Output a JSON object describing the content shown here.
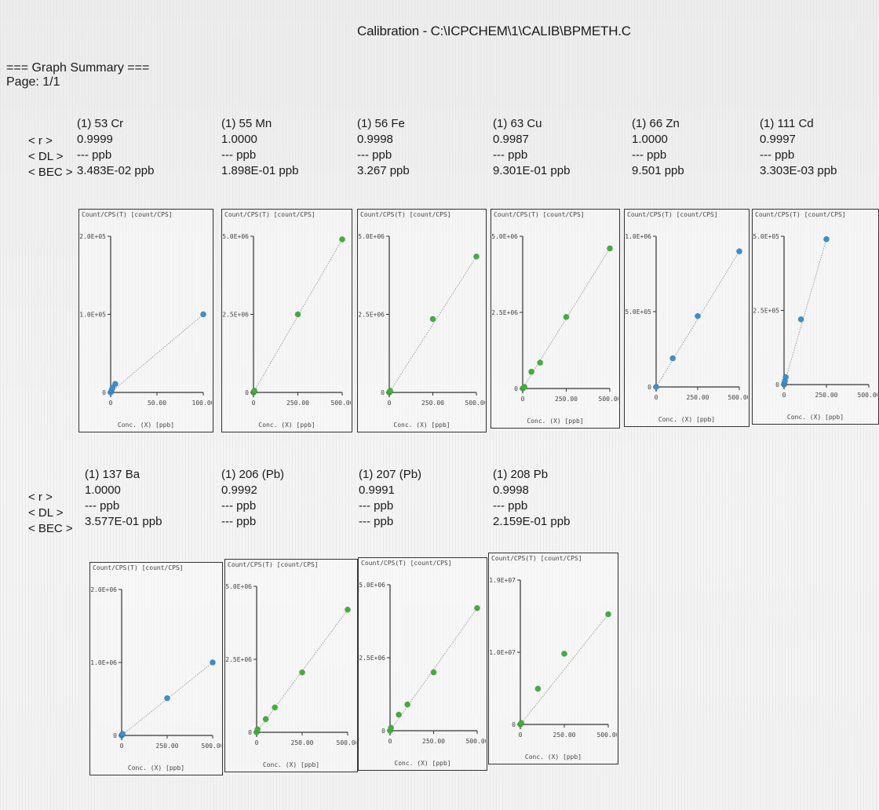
{
  "title": "Calibration - C:\\ICPCHEM\\1\\CALIB\\BPMETH.C",
  "summary": {
    "heading": "=== Graph Summary ===",
    "page": "Page: 1/1"
  },
  "row_labels": {
    "r": "< r >",
    "dl": "< DL >",
    "bec": "< BEC >"
  },
  "plot_header": "Count/CPS(T) [count/CPS]",
  "plot_xlabel": "Conc. (X) [ppb]",
  "colors": {
    "blue": "#3b8fcf",
    "green": "#41b03a"
  },
  "elements": [
    {
      "name": "(1) 53 Cr",
      "r": "0.9999",
      "dl": "--- ppb",
      "bec": "3.483E-02 ppb",
      "chart_data": {
        "type": "scatter",
        "x_ticks": [
          "0",
          "50.00",
          "100.00"
        ],
        "y_ticks": [
          "0",
          "1.0E+05",
          "2.0E+05"
        ],
        "xlim": [
          0,
          100
        ],
        "ylim": [
          0,
          200000
        ],
        "color": "blue",
        "points": [
          [
            0,
            0
          ],
          [
            1,
            3000
          ],
          [
            2,
            6000
          ],
          [
            5,
            11000
          ],
          [
            100,
            100000
          ]
        ]
      }
    },
    {
      "name": "(1) 55 Mn",
      "r": "1.0000",
      "dl": "--- ppb",
      "bec": "1.898E-01 ppb",
      "chart_data": {
        "type": "scatter",
        "x_ticks": [
          "0",
          "250.00",
          "500.00"
        ],
        "y_ticks": [
          "0",
          "2.5E+06",
          "5.0E+06"
        ],
        "xlim": [
          0,
          500
        ],
        "ylim": [
          0,
          5000000
        ],
        "color": "green",
        "points": [
          [
            0,
            0
          ],
          [
            2,
            20000
          ],
          [
            5,
            50000
          ],
          [
            250,
            2500000
          ],
          [
            500,
            4900000
          ]
        ]
      }
    },
    {
      "name": "(1) 56 Fe",
      "r": "0.9998",
      "dl": "--- ppb",
      "bec": "3.267 ppb",
      "chart_data": {
        "type": "scatter",
        "x_ticks": [
          "0",
          "250.00",
          "500.00"
        ],
        "y_ticks": [
          "0",
          "2.5E+06",
          "5.0E+06"
        ],
        "xlim": [
          0,
          500
        ],
        "ylim": [
          0,
          5000000
        ],
        "color": "green",
        "points": [
          [
            0,
            0
          ],
          [
            2,
            20000
          ],
          [
            5,
            50000
          ],
          [
            250,
            2350000
          ],
          [
            500,
            4350000
          ]
        ]
      }
    },
    {
      "name": "(1) 63 Cu",
      "r": "0.9987",
      "dl": "--- ppb",
      "bec": "9.301E-01 ppb",
      "chart_data": {
        "type": "scatter",
        "x_ticks": [
          "0",
          "250.00",
          "500.00"
        ],
        "y_ticks": [
          "0",
          "2.5E+06",
          "5.0E+06"
        ],
        "xlim": [
          0,
          500
        ],
        "ylim": [
          0,
          5000000
        ],
        "color": "green",
        "points": [
          [
            0,
            0
          ],
          [
            10,
            50000
          ],
          [
            50,
            550000
          ],
          [
            100,
            850000
          ],
          [
            250,
            2350000
          ],
          [
            500,
            4600000
          ]
        ]
      }
    },
    {
      "name": "(1) 66 Zn",
      "r": "1.0000",
      "dl": "--- ppb",
      "bec": "9.501 ppb",
      "chart_data": {
        "type": "scatter",
        "x_ticks": [
          "0",
          "250.00",
          "500.00"
        ],
        "y_ticks": [
          "0",
          "5.0E+05",
          "1.0E+06"
        ],
        "xlim": [
          0,
          500
        ],
        "ylim": [
          0,
          1000000
        ],
        "color": "blue",
        "points": [
          [
            0,
            0
          ],
          [
            100,
            190000
          ],
          [
            250,
            470000
          ],
          [
            500,
            900000
          ]
        ]
      }
    },
    {
      "name": "(1) 111 Cd",
      "r": "0.9997",
      "dl": "--- ppb",
      "bec": "3.303E-03 ppb",
      "chart_data": {
        "type": "scatter",
        "x_ticks": [
          "0",
          "250.00",
          "500.00"
        ],
        "y_ticks": [
          "0",
          "2.5E+05",
          "5.0E+05"
        ],
        "xlim": [
          0,
          500
        ],
        "ylim": [
          0,
          500000
        ],
        "color": "blue",
        "points": [
          [
            0,
            0
          ],
          [
            2,
            5000
          ],
          [
            5,
            12000
          ],
          [
            10,
            25000
          ],
          [
            100,
            220000
          ],
          [
            250,
            490000
          ]
        ]
      }
    },
    {
      "name": "(1) 137 Ba",
      "r": "1.0000",
      "dl": "--- ppb",
      "bec": "3.577E-01 ppb",
      "chart_data": {
        "type": "scatter",
        "x_ticks": [
          "0",
          "250.00",
          "500.00"
        ],
        "y_ticks": [
          "0",
          "1.0E+06",
          "2.0E+06"
        ],
        "xlim": [
          0,
          500
        ],
        "ylim": [
          0,
          2000000
        ],
        "color": "blue",
        "points": [
          [
            0,
            0
          ],
          [
            2,
            10000
          ],
          [
            5,
            20000
          ],
          [
            250,
            510000
          ],
          [
            500,
            1000000
          ]
        ]
      }
    },
    {
      "name": "(1) 206 (Pb)",
      "r": "0.9992",
      "dl": "--- ppb",
      "bec": "--- ppb",
      "chart_data": {
        "type": "scatter",
        "x_ticks": [
          "0",
          "250.00",
          "500.00"
        ],
        "y_ticks": [
          "0",
          "2.5E+06",
          "5.0E+06"
        ],
        "xlim": [
          0,
          500
        ],
        "ylim": [
          0,
          5000000
        ],
        "color": "green",
        "points": [
          [
            0,
            0
          ],
          [
            5,
            100000
          ],
          [
            50,
            450000
          ],
          [
            100,
            850000
          ],
          [
            250,
            2050000
          ],
          [
            500,
            4200000
          ]
        ]
      }
    },
    {
      "name": "(1) 207 (Pb)",
      "r": "0.9991",
      "dl": "--- ppb",
      "bec": "--- ppb",
      "chart_data": {
        "type": "scatter",
        "x_ticks": [
          "0",
          "250.00",
          "500.00"
        ],
        "y_ticks": [
          "0",
          "2.5E+06",
          "5.0E+06"
        ],
        "xlim": [
          0,
          500
        ],
        "ylim": [
          0,
          5000000
        ],
        "color": "green",
        "points": [
          [
            0,
            0
          ],
          [
            5,
            100000
          ],
          [
            50,
            550000
          ],
          [
            100,
            900000
          ],
          [
            250,
            2000000
          ],
          [
            500,
            4200000
          ]
        ]
      }
    },
    {
      "name": "(1) 208 Pb",
      "r": "0.9998",
      "dl": "--- ppb",
      "bec": "2.159E-01 ppb",
      "chart_data": {
        "type": "scatter",
        "x_ticks": [
          "0",
          "250.00",
          "500.00"
        ],
        "y_ticks": [
          "0",
          "1.0E+07",
          "1.9E+07"
        ],
        "xlim": [
          0,
          500
        ],
        "ylim": [
          0,
          19000000
        ],
        "color": "green",
        "points": [
          [
            0,
            0
          ],
          [
            5,
            200000
          ],
          [
            100,
            4700000
          ],
          [
            250,
            9300000
          ],
          [
            500,
            14500000
          ]
        ]
      }
    }
  ]
}
